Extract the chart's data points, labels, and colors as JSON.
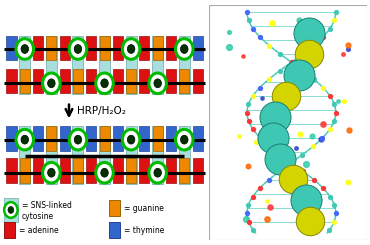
{
  "bg_color": "#ffffff",
  "colors": {
    "adenine": "#dd1111",
    "thymine": "#3366cc",
    "guanine": "#ee8800",
    "sns_bg": "#aadddd",
    "sns_border": "#88bbbb",
    "green_outer": "#00bb00",
    "green_inner": "#003300",
    "black": "#000000",
    "white": "#ffffff"
  },
  "top_seq1": [
    "blue",
    "sns",
    "red",
    "orange",
    "red",
    "sns",
    "red",
    "orange",
    "red",
    "sns",
    "red",
    "orange",
    "red",
    "sns",
    "blue"
  ],
  "bot_seq1": [
    "red",
    "orange",
    "red",
    "sns",
    "red",
    "orange",
    "red",
    "sns",
    "red",
    "orange",
    "red",
    "sns",
    "red",
    "orange",
    "red"
  ],
  "top_seq2": [
    "blue",
    "sns",
    "blue",
    "orange",
    "blue",
    "sns",
    "blue",
    "orange",
    "blue",
    "sns",
    "blue",
    "orange",
    "blue",
    "sns",
    "blue"
  ],
  "bot_seq2": [
    "red",
    "orange",
    "red",
    "sns",
    "red",
    "orange",
    "red",
    "sns",
    "red",
    "orange",
    "red",
    "sns",
    "red",
    "orange",
    "red"
  ],
  "arrow_label": "HRP/H₂O₂",
  "legend": {
    "sns_label": "= SNS-linked\ncytosine",
    "guanine_label": "= guanine",
    "adenine_label": "= adenine",
    "thymine_label": "= thymine"
  }
}
